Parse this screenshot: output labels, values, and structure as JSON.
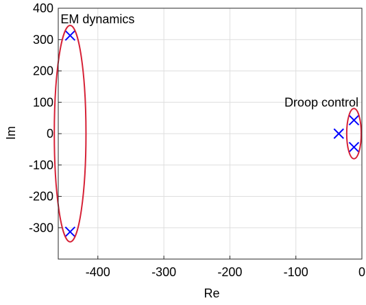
{
  "chart_data": {
    "type": "scatter",
    "title": "",
    "xlabel": "Re",
    "ylabel": "Im",
    "xlim": [
      -460,
      0
    ],
    "ylim": [
      -400,
      400
    ],
    "xticks": [
      -400,
      -300,
      -200,
      -100,
      0
    ],
    "yticks": [
      -300,
      -200,
      -100,
      0,
      100,
      200,
      300,
      400
    ],
    "xtick_labels": [
      "-400",
      "-300",
      "-200",
      "-100",
      "0"
    ],
    "ytick_labels": [
      "-300",
      "-200",
      "-100",
      "0",
      "100",
      "200",
      "300",
      "400"
    ],
    "grid": true,
    "marker": "x",
    "marker_color": "#0000ff",
    "series": [
      {
        "points": [
          {
            "x": -442,
            "y": 313
          },
          {
            "x": -442,
            "y": -313
          },
          {
            "x": -35,
            "y": 0
          },
          {
            "x": -12,
            "y": 43
          },
          {
            "x": -12,
            "y": -43
          }
        ]
      }
    ],
    "annotations": [
      {
        "text": "EM dynamics",
        "ellipse": {
          "cx": -442,
          "cy": 0,
          "rx": 24,
          "ry": 345
        },
        "color": "#d62035"
      },
      {
        "text": "Droop control",
        "ellipse": {
          "cx": -12,
          "cy": 0,
          "rx": 11,
          "ry": 80
        },
        "color": "#d62035"
      }
    ]
  }
}
